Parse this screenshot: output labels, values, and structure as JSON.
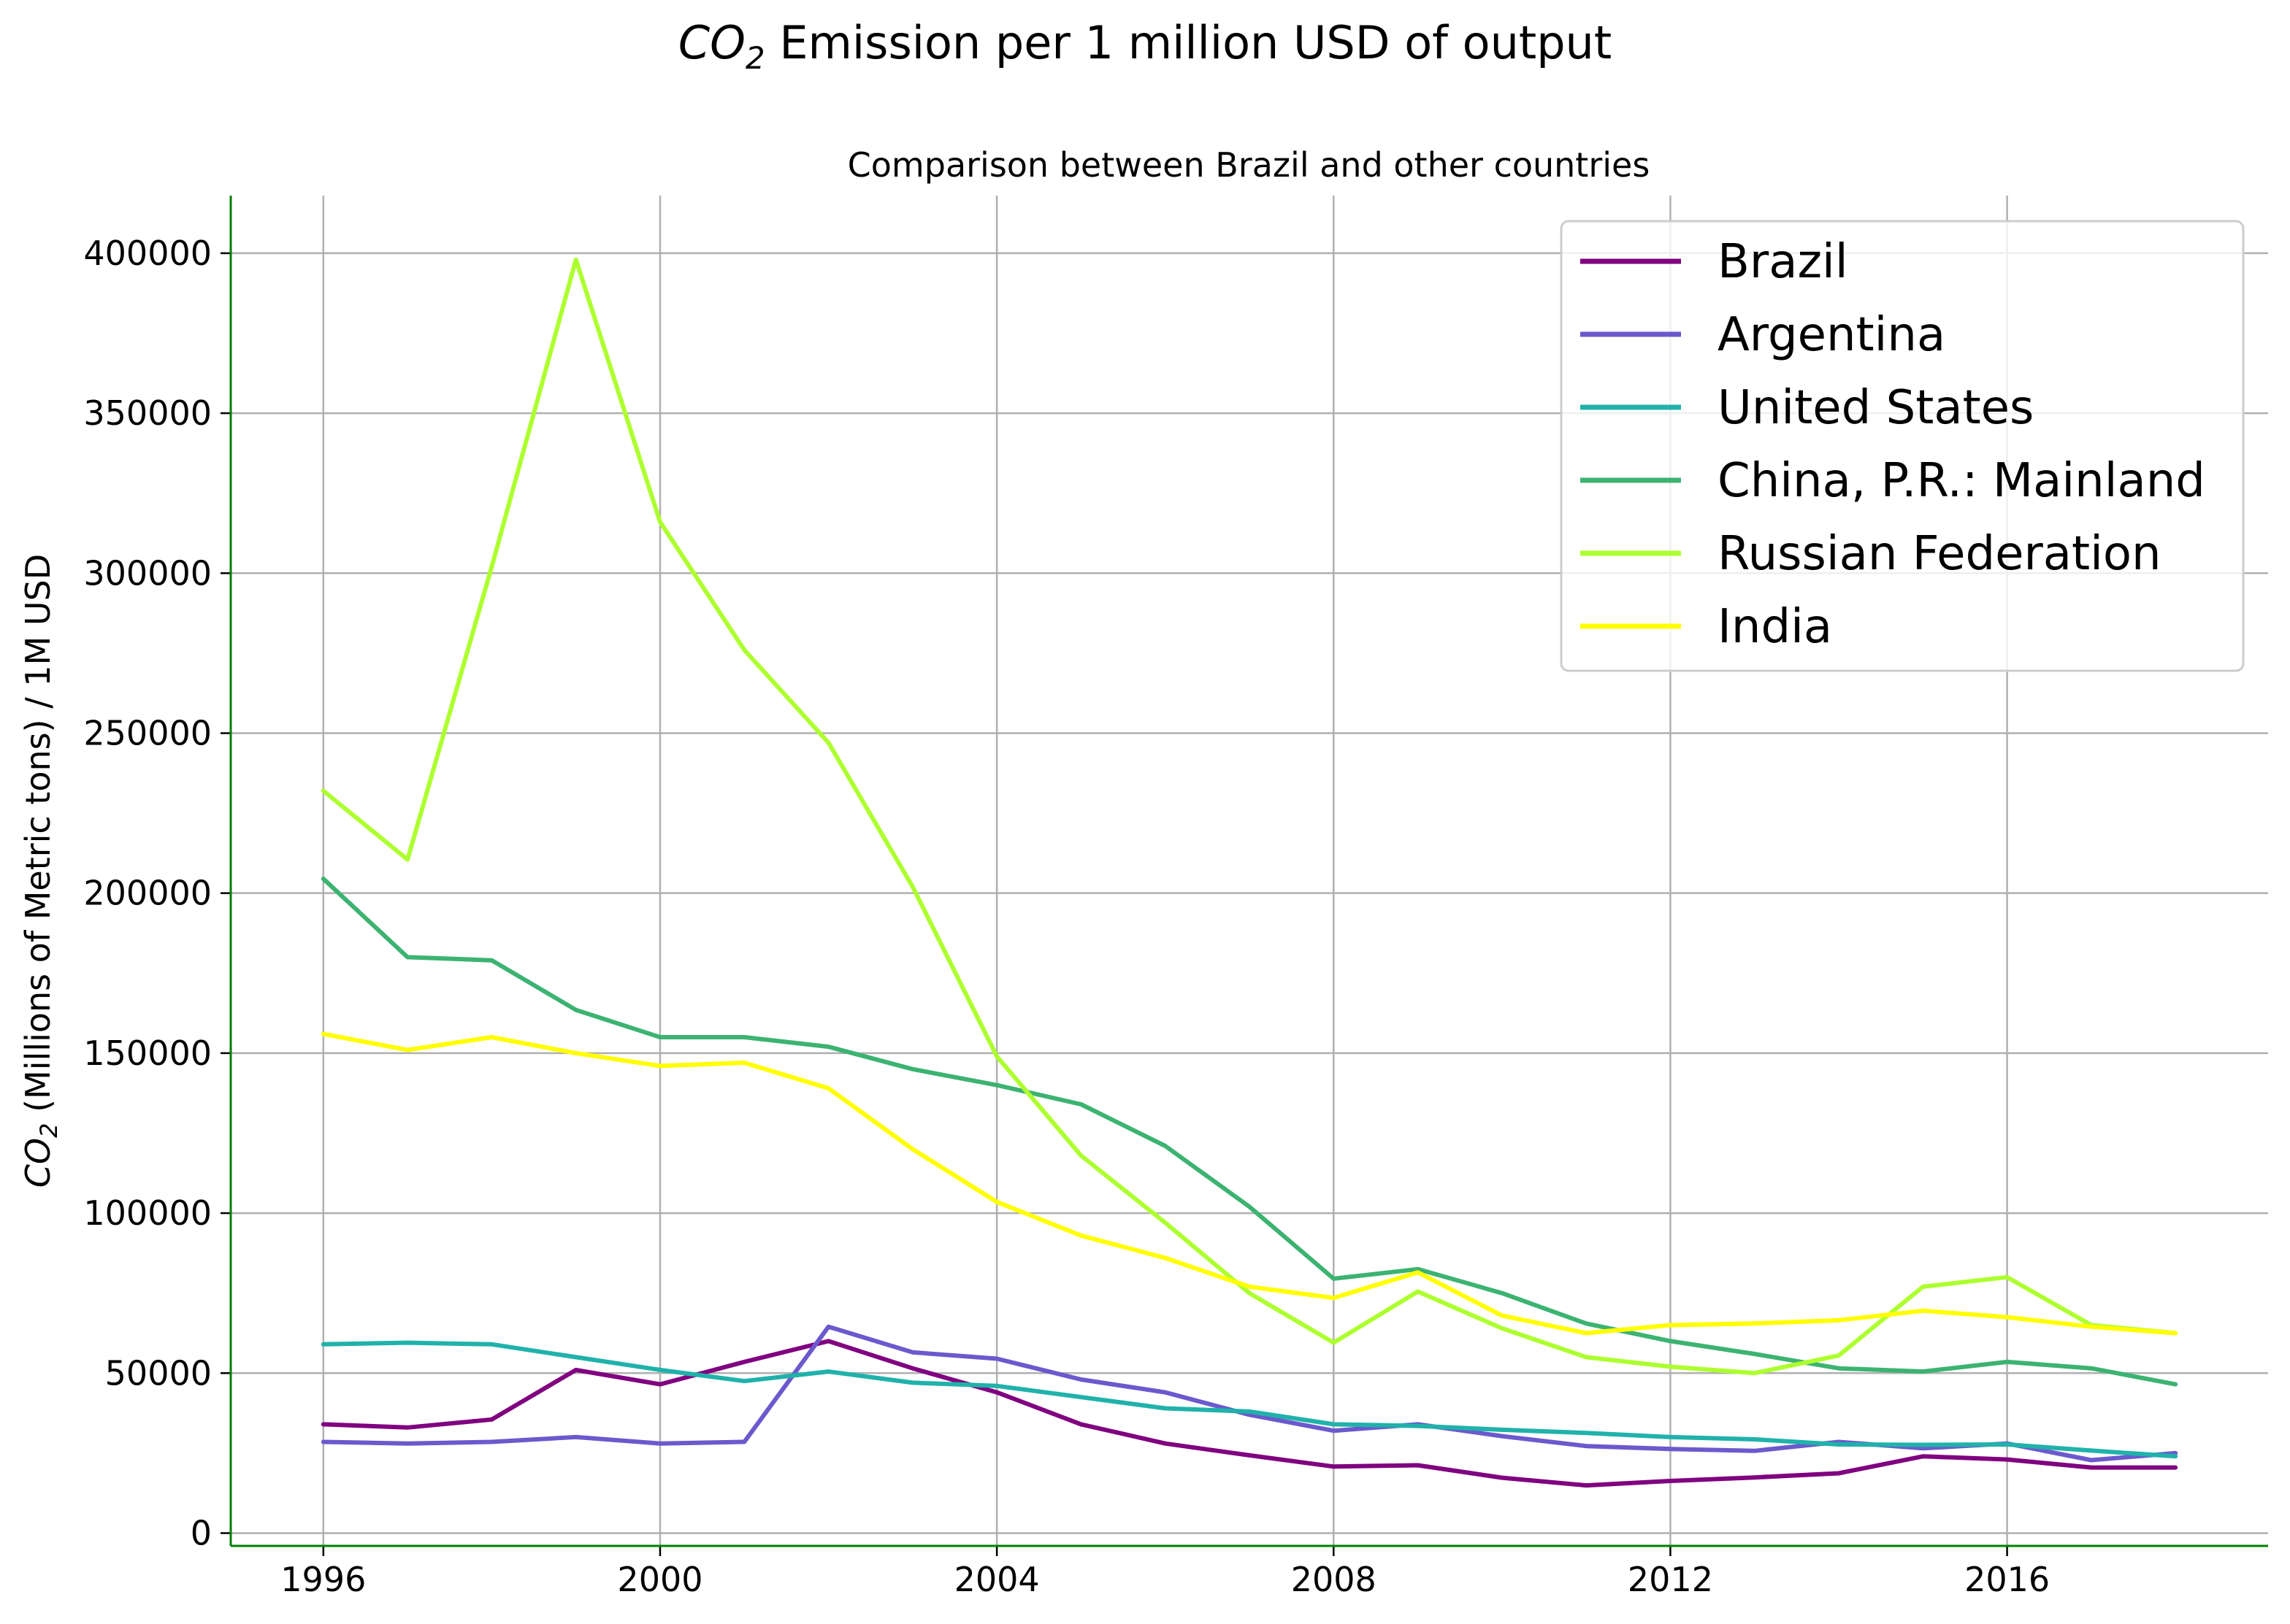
{
  "chart_data": {
    "type": "line",
    "title_prefix": "CO",
    "title_sub": "2",
    "title_rest": " Emission per 1 million USD of output",
    "subtitle": "Comparison between Brazil and other countries",
    "ylabel_prefix": "CO",
    "ylabel_sub": "2",
    "ylabel_rest": " (Millions of Metric tons) / 1M USD",
    "xlabel": "",
    "xlim": [
      1994.9,
      2019.1
    ],
    "ylim": [
      -4000,
      418000
    ],
    "xticks": [
      1996,
      2000,
      2004,
      2008,
      2012,
      2016
    ],
    "yticks": [
      0,
      50000,
      100000,
      150000,
      200000,
      250000,
      300000,
      350000,
      400000
    ],
    "grid": true,
    "legend_position": "top-right",
    "x": [
      1996,
      1997,
      1998,
      1999,
      2000,
      2001,
      2002,
      2003,
      2004,
      2005,
      2006,
      2007,
      2008,
      2009,
      2010,
      2011,
      2012,
      2013,
      2014,
      2015,
      2016,
      2017,
      2018
    ],
    "series": [
      {
        "name": "Brazil",
        "color": "#800080",
        "values": [
          34000,
          33000,
          35500,
          51000,
          46500,
          53500,
          60000,
          51500,
          44000,
          34000,
          28000,
          24300,
          20800,
          21200,
          17300,
          14900,
          16300,
          17400,
          18700,
          24000,
          23000,
          20500,
          20500
        ]
      },
      {
        "name": "Argentina",
        "color": "#6a5acd",
        "values": [
          28500,
          28000,
          28500,
          30000,
          28000,
          28500,
          64500,
          56500,
          54500,
          48000,
          44000,
          37000,
          32000,
          34000,
          30300,
          27200,
          26300,
          25700,
          28500,
          26500,
          28000,
          22800,
          25000
        ]
      },
      {
        "name": "United States",
        "color": "#20b2aa",
        "values": [
          59000,
          59500,
          59000,
          55000,
          51000,
          47500,
          50500,
          47000,
          46000,
          42500,
          39000,
          38000,
          34000,
          33500,
          32300,
          31300,
          30000,
          29300,
          27700,
          27600,
          27700,
          25800,
          24000
        ]
      },
      {
        "name": "China, P.R.: Mainland",
        "color": "#3cb371",
        "values": [
          204500,
          180000,
          179000,
          163500,
          155000,
          155000,
          152000,
          145000,
          140000,
          134000,
          121000,
          102000,
          79500,
          82500,
          75000,
          65500,
          60000,
          56000,
          51500,
          50500,
          53500,
          51500,
          46500
        ]
      },
      {
        "name": "Russian Federation",
        "color": "#adff2f",
        "values": [
          232000,
          210500,
          302000,
          398000,
          316000,
          276000,
          247000,
          202000,
          149000,
          118000,
          97000,
          75000,
          59500,
          75500,
          64000,
          55000,
          52000,
          50000,
          55500,
          77000,
          80000,
          65000,
          62500
        ]
      },
      {
        "name": "India",
        "color": "#ffff00",
        "values": [
          156000,
          151000,
          155000,
          150000,
          146000,
          147000,
          139000,
          120000,
          103500,
          93000,
          86000,
          77000,
          73500,
          81500,
          68000,
          62500,
          65000,
          65500,
          66500,
          69500,
          67500,
          64500,
          62500
        ]
      }
    ]
  }
}
